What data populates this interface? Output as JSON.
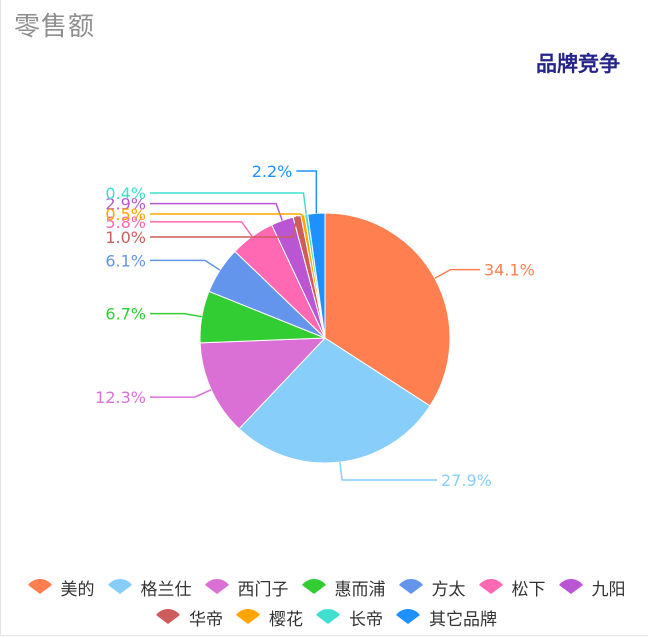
{
  "header": {
    "title": "零售额",
    "subtitle": "品牌竞争"
  },
  "chart_data": {
    "type": "pie",
    "title": "品牌竞争",
    "slices": [
      {
        "label": "美的",
        "value": 34.1,
        "display": "34.1%",
        "color": "#ff7f50"
      },
      {
        "label": "格兰仕",
        "value": 27.9,
        "display": "27.9%",
        "color": "#87cefa"
      },
      {
        "label": "西门子",
        "value": 12.3,
        "display": "12.3%",
        "color": "#da70d6"
      },
      {
        "label": "惠而浦",
        "value": 6.7,
        "display": "6.7%",
        "color": "#32cd32"
      },
      {
        "label": "方太",
        "value": 6.1,
        "display": "6.1%",
        "color": "#6495ed"
      },
      {
        "label": "松下",
        "value": 5.8,
        "display": "5.8%",
        "color": "#ff69b4"
      },
      {
        "label": "九阳",
        "value": 2.9,
        "display": "2.9%",
        "color": "#ba55d3"
      },
      {
        "label": "华帝",
        "value": 1.0,
        "display": "1.0%",
        "color": "#cd5c5c"
      },
      {
        "label": "樱花",
        "value": 0.5,
        "display": "0.5%",
        "color": "#ffa500"
      },
      {
        "label": "长帝",
        "value": 0.4,
        "display": "0.4%",
        "color": "#40e0d0"
      },
      {
        "label": "其它品牌",
        "value": 2.2,
        "display": "2.2%",
        "color": "#1e90ff"
      }
    ],
    "legend_position": "bottom"
  }
}
